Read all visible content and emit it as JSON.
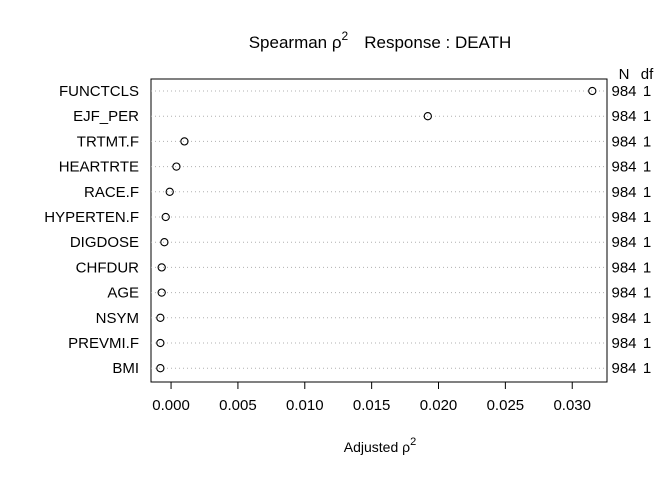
{
  "chart_data": {
    "type": "scatter",
    "title": "Spearman ρ²    Response : DEATH",
    "title_parts": {
      "measure": "Spearman ρ",
      "power": "2",
      "response": "Response : DEATH"
    },
    "xlabel": "Adjusted ρ²",
    "xlabel_parts": {
      "main": "Adjusted ρ",
      "power": "2"
    },
    "xlim": [
      -0.0015,
      0.0326
    ],
    "x_ticks": [
      0.0,
      0.005,
      0.01,
      0.015,
      0.02,
      0.025,
      0.03
    ],
    "x_tick_labels": [
      "0.000",
      "0.005",
      "0.010",
      "0.015",
      "0.020",
      "0.025",
      "0.030"
    ],
    "grid": "dotted horizontal lines per row",
    "marker": "open circle",
    "right_header": {
      "n": "N",
      "df": "df"
    },
    "rows": [
      {
        "label": "FUNCTCLS",
        "value": 0.0315,
        "n": "984",
        "df": "1"
      },
      {
        "label": "EJF_PER",
        "value": 0.0192,
        "n": "984",
        "df": "1"
      },
      {
        "label": "TRTMT.F",
        "value": 0.001,
        "n": "984",
        "df": "1"
      },
      {
        "label": "HEARTRTE",
        "value": 0.0004,
        "n": "984",
        "df": "1"
      },
      {
        "label": "RACE.F",
        "value": -0.0001,
        "n": "984",
        "df": "1"
      },
      {
        "label": "HYPERTEN.F",
        "value": -0.0004,
        "n": "984",
        "df": "1"
      },
      {
        "label": "DIGDOSE",
        "value": -0.0005,
        "n": "984",
        "df": "1"
      },
      {
        "label": "CHFDUR",
        "value": -0.0007,
        "n": "984",
        "df": "1"
      },
      {
        "label": "AGE",
        "value": -0.0007,
        "n": "984",
        "df": "1"
      },
      {
        "label": "NSYM",
        "value": -0.0008,
        "n": "984",
        "df": "1"
      },
      {
        "label": "PREVMI.F",
        "value": -0.0008,
        "n": "984",
        "df": "1"
      },
      {
        "label": "BMI",
        "value": -0.0008,
        "n": "984",
        "df": "1"
      }
    ]
  }
}
